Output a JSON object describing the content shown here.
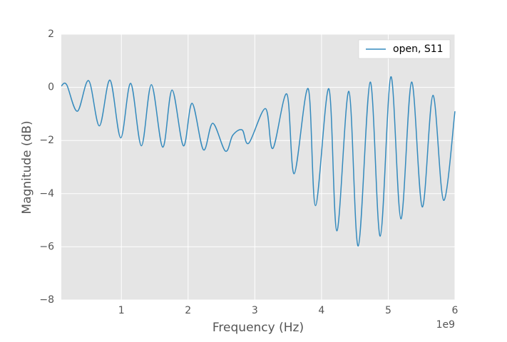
{
  "chart_data": {
    "type": "line",
    "x_label": "Frequency (Hz)",
    "y_label": "Magnitude (dB)",
    "x_offset_text": "1e9",
    "x": [
      0.1,
      0.18,
      0.34,
      0.51,
      0.67,
      0.83,
      0.99,
      1.14,
      1.3,
      1.45,
      1.62,
      1.76,
      1.93,
      2.06,
      2.23,
      2.37,
      2.56,
      2.67,
      2.81,
      2.91,
      3.16,
      3.27,
      3.48,
      3.59,
      3.8,
      3.91,
      4.11,
      4.23,
      4.41,
      4.55,
      4.73,
      4.88,
      5.04,
      5.19,
      5.35,
      5.51,
      5.67,
      5.83,
      6.0
    ],
    "series": [
      {
        "name": "open, S11",
        "color": "#348abd",
        "values": [
          0.05,
          0.1,
          -0.9,
          0.25,
          -1.45,
          0.27,
          -1.9,
          0.15,
          -2.2,
          0.1,
          -2.25,
          -0.1,
          -2.2,
          -0.6,
          -2.35,
          -1.35,
          -2.4,
          -1.8,
          -1.6,
          -2.1,
          -0.8,
          -2.3,
          -0.25,
          -3.25,
          -0.05,
          -4.45,
          -0.05,
          -5.4,
          -0.15,
          -5.97,
          0.2,
          -5.6,
          0.4,
          -4.95,
          0.2,
          -4.5,
          -0.3,
          -4.25,
          -0.9
        ]
      }
    ],
    "xlim": [
      0.1,
      6
    ],
    "ylim": [
      -8,
      2
    ],
    "xticks": [
      1,
      2,
      3,
      4,
      5,
      6
    ],
    "yticks": [
      {
        "value": -8,
        "label": "−8"
      },
      {
        "value": -6,
        "label": "−6"
      },
      {
        "value": -4,
        "label": "−4"
      },
      {
        "value": -2,
        "label": "−2"
      },
      0,
      2
    ],
    "grid": true,
    "legend": "upper right"
  }
}
